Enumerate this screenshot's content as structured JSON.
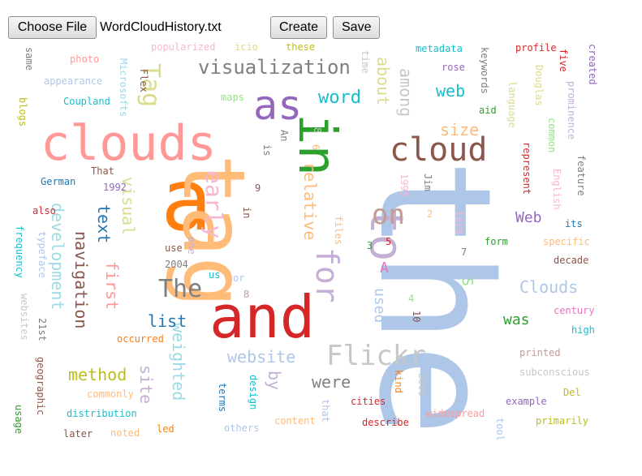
{
  "toolbar": {
    "choose_file_label": "Choose File",
    "file_name": "WordCloudHistory.txt",
    "create_label": "Create",
    "save_label": "Save"
  },
  "words": [
    {
      "text": "the",
      "color": "#aec7e8",
      "rotated": true
    },
    {
      "text": "clouds",
      "color": "#ff9896",
      "rotated": false
    },
    {
      "text": "a",
      "color": "#ff7f0e",
      "rotated": false
    },
    {
      "text": "tag",
      "color": "#ffbb78",
      "rotated": true
    },
    {
      "text": "and",
      "color": "#d62728",
      "rotated": false
    },
    {
      "text": "in",
      "color": "#2ca02c",
      "rotated": true
    },
    {
      "text": "as",
      "color": "#9467bd",
      "rotated": false
    },
    {
      "text": "cloud",
      "color": "#8c564b",
      "rotated": false
    },
    {
      "text": "to",
      "color": "#c5b0d5",
      "rotated": true
    },
    {
      "text": "Tag",
      "color": "#dbdb8d",
      "rotated": true
    },
    {
      "text": "visualization",
      "color": "#7f7f7f",
      "rotated": false
    },
    {
      "text": "Flickr",
      "color": "#c7c7c7",
      "rotated": false
    },
    {
      "text": "The",
      "color": "#7f7f7f",
      "rotated": false
    },
    {
      "text": "on",
      "color": "#c49c94",
      "rotated": false
    },
    {
      "text": "for",
      "color": "#c5b0d5",
      "rotated": true
    },
    {
      "text": "early",
      "color": "#f7b6d2",
      "rotated": true
    },
    {
      "text": "word",
      "color": "#17becf",
      "rotated": false
    },
    {
      "text": "web",
      "color": "#17becf",
      "rotated": false
    },
    {
      "text": "among",
      "color": "#c7c7c7",
      "rotated": true
    },
    {
      "text": "about",
      "color": "#dbdb8d",
      "rotated": true
    },
    {
      "text": "size",
      "color": "#ffbb78",
      "rotated": false
    },
    {
      "text": "relative",
      "color": "#ffbb78",
      "rotated": true
    },
    {
      "text": "development",
      "color": "#9edae5",
      "rotated": true
    },
    {
      "text": "navigation",
      "color": "#8c564b",
      "rotated": true
    },
    {
      "text": "text",
      "color": "#1f77b4",
      "rotated": true
    },
    {
      "text": "visual",
      "color": "#dbdb8d",
      "rotated": true
    },
    {
      "text": "first",
      "color": "#ff9896",
      "rotated": true
    },
    {
      "text": "weighted",
      "color": "#9edae5",
      "rotated": true
    },
    {
      "text": "list",
      "color": "#1f77b4",
      "rotated": false
    },
    {
      "text": "website",
      "color": "#aec7e8",
      "rotated": false
    },
    {
      "text": "method",
      "color": "#bcbd22",
      "rotated": false
    },
    {
      "text": "site",
      "color": "#c5b0d5",
      "rotated": true
    },
    {
      "text": "were",
      "color": "#7f7f7f",
      "rotated": false
    },
    {
      "text": "by",
      "color": "#c5b0d5",
      "rotated": true
    },
    {
      "text": "Clouds",
      "color": "#aec7e8",
      "rotated": false
    },
    {
      "text": "Web",
      "color": "#9467bd",
      "rotated": false
    },
    {
      "text": "was",
      "color": "#2ca02c",
      "rotated": false
    },
    {
      "text": "used",
      "color": "#aec7e8",
      "rotated": true
    },
    {
      "text": "A",
      "color": "#e377c2",
      "rotated": false
    },
    {
      "text": "S",
      "color": "#98df8a",
      "rotated": true
    },
    {
      "text": "popularized",
      "color": "#f7b6d2",
      "rotated": false
    },
    {
      "text": "icio",
      "color": "#dbdb8d",
      "rotated": false
    },
    {
      "text": "these",
      "color": "#bcbd22",
      "rotated": false
    },
    {
      "text": "metadata",
      "color": "#17becf",
      "rotated": false
    },
    {
      "text": "keywords",
      "color": "#7f7f7f",
      "rotated": true
    },
    {
      "text": "profile",
      "color": "#d62728",
      "rotated": false
    },
    {
      "text": "created",
      "color": "#9467bd",
      "rotated": true
    },
    {
      "text": "same",
      "color": "#7f7f7f",
      "rotated": true
    },
    {
      "text": "photo",
      "color": "#ff9896",
      "rotated": false
    },
    {
      "text": "Microsofts",
      "color": "#9edae5",
      "rotated": true
    },
    {
      "text": "Flex",
      "color": "#8c564b",
      "rotated": true
    },
    {
      "text": "time",
      "color": "#c7c7c7",
      "rotated": true
    },
    {
      "text": "rose",
      "color": "#9467bd",
      "rotated": false
    },
    {
      "text": "Douglas",
      "color": "#dbdb8d",
      "rotated": true
    },
    {
      "text": "five",
      "color": "#d62728",
      "rotated": true
    },
    {
      "text": "appearance",
      "color": "#aec7e8",
      "rotated": false
    },
    {
      "text": "prominence",
      "color": "#c5b0d5",
      "rotated": true
    },
    {
      "text": "blogs",
      "color": "#bcbd22",
      "rotated": true
    },
    {
      "text": "Coupland",
      "color": "#17becf",
      "rotated": false
    },
    {
      "text": "maps",
      "color": "#98df8a",
      "rotated": false
    },
    {
      "text": "aid",
      "color": "#2ca02c",
      "rotated": false
    },
    {
      "text": "language",
      "color": "#dbdb8d",
      "rotated": true
    },
    {
      "text": "common",
      "color": "#98df8a",
      "rotated": true
    },
    {
      "text": "An",
      "color": "#7f7f7f",
      "rotated": true
    },
    {
      "text": "is",
      "color": "#7f7f7f",
      "rotated": true
    },
    {
      "text": "8",
      "color": "#c7c7c7",
      "rotated": true
    },
    {
      "text": "6",
      "color": "#ffbb78",
      "rotated": true
    },
    {
      "text": "represent",
      "color": "#d62728",
      "rotated": true
    },
    {
      "text": "feature",
      "color": "#7f7f7f",
      "rotated": true
    },
    {
      "text": "That",
      "color": "#8c564b",
      "rotated": false
    },
    {
      "text": "German",
      "color": "#1f77b4",
      "rotated": false
    },
    {
      "text": "1992",
      "color": "#9467bd",
      "rotated": false
    },
    {
      "text": "also",
      "color": "#d62728",
      "rotated": false
    },
    {
      "text": "1995",
      "color": "#f7b6d2",
      "rotated": true
    },
    {
      "text": "Jim",
      "color": "#7f7f7f",
      "rotated": true
    },
    {
      "text": "English",
      "color": "#f7b6d2",
      "rotated": true
    },
    {
      "text": "term",
      "color": "#f7b6d2",
      "rotated": true
    },
    {
      "text": "its",
      "color": "#1f77b4",
      "rotated": false
    },
    {
      "text": "2",
      "color": "#ffbb78",
      "rotated": false
    },
    {
      "text": "frequency",
      "color": "#17becf",
      "rotated": true
    },
    {
      "text": "typeface",
      "color": "#aec7e8",
      "rotated": true
    },
    {
      "text": "9",
      "color": "#8c564b",
      "rotated": false
    },
    {
      "text": "in",
      "color": "#8c564b",
      "rotated": true
    },
    {
      "text": "files",
      "color": "#ffbb78",
      "rotated": true
    },
    {
      "text": "3",
      "color": "#2ca02c",
      "rotated": false
    },
    {
      "text": "5",
      "color": "#d62728",
      "rotated": false
    },
    {
      "text": "7",
      "color": "#7f7f7f",
      "rotated": false
    },
    {
      "text": "form",
      "color": "#2ca02c",
      "rotated": false
    },
    {
      "text": "specific",
      "color": "#ffbb78",
      "rotated": false
    },
    {
      "text": "use",
      "color": "#8c564b",
      "rotated": false
    },
    {
      "text": "one",
      "color": "#c5b0d5",
      "rotated": true
    },
    {
      "text": "decade",
      "color": "#8c564b",
      "rotated": false
    },
    {
      "text": "2004",
      "color": "#7f7f7f",
      "rotated": false
    },
    {
      "text": "us",
      "color": "#17becf",
      "rotated": false
    },
    {
      "text": "or",
      "color": "#aec7e8",
      "rotated": false
    },
    {
      "text": "4",
      "color": "#98df8a",
      "rotated": false
    },
    {
      "text": "8",
      "color": "#c49c94",
      "rotated": false
    },
    {
      "text": "websites",
      "color": "#c7c7c7",
      "rotated": true
    },
    {
      "text": "21st",
      "color": "#7f7f7f",
      "rotated": true
    },
    {
      "text": "century",
      "color": "#e377c2",
      "rotated": false
    },
    {
      "text": "10",
      "color": "#8c564b",
      "rotated": true
    },
    {
      "text": "high",
      "color": "#17becf",
      "rotated": false
    },
    {
      "text": "occurred",
      "color": "#ff7f0e",
      "rotated": false
    },
    {
      "text": "printed",
      "color": "#c49c94",
      "rotated": false
    },
    {
      "text": "subconscious",
      "color": "#c7c7c7",
      "rotated": false
    },
    {
      "text": "geographic",
      "color": "#8c564b",
      "rotated": true
    },
    {
      "text": "commonly",
      "color": "#ffbb78",
      "rotated": false
    },
    {
      "text": "kind",
      "color": "#ff7f0e",
      "rotated": true
    },
    {
      "text": "2006",
      "color": "#c7c7c7",
      "rotated": true
    },
    {
      "text": "Del",
      "color": "#bcbd22",
      "rotated": false
    },
    {
      "text": "terms",
      "color": "#1f77b4",
      "rotated": true
    },
    {
      "text": "design",
      "color": "#17becf",
      "rotated": true
    },
    {
      "text": "cities",
      "color": "#d62728",
      "rotated": false
    },
    {
      "text": "example",
      "color": "#9467bd",
      "rotated": false
    },
    {
      "text": "usage",
      "color": "#2ca02c",
      "rotated": true
    },
    {
      "text": "distribution",
      "color": "#17becf",
      "rotated": false
    },
    {
      "text": "that",
      "color": "#aec7e8",
      "rotated": true
    },
    {
      "text": "widespread",
      "color": "#ff9896",
      "rotated": false
    },
    {
      "text": "primarily",
      "color": "#bcbd22",
      "rotated": false
    },
    {
      "text": "content",
      "color": "#ffbb78",
      "rotated": false
    },
    {
      "text": "describe",
      "color": "#d62728",
      "rotated": false
    },
    {
      "text": "tool",
      "color": "#aec7e8",
      "rotated": true
    },
    {
      "text": "later",
      "color": "#8c564b",
      "rotated": false
    },
    {
      "text": "noted",
      "color": "#ffbb78",
      "rotated": false
    },
    {
      "text": "led",
      "color": "#ff7f0e",
      "rotated": false
    },
    {
      "text": "others",
      "color": "#aec7e8",
      "rotated": false
    }
  ]
}
